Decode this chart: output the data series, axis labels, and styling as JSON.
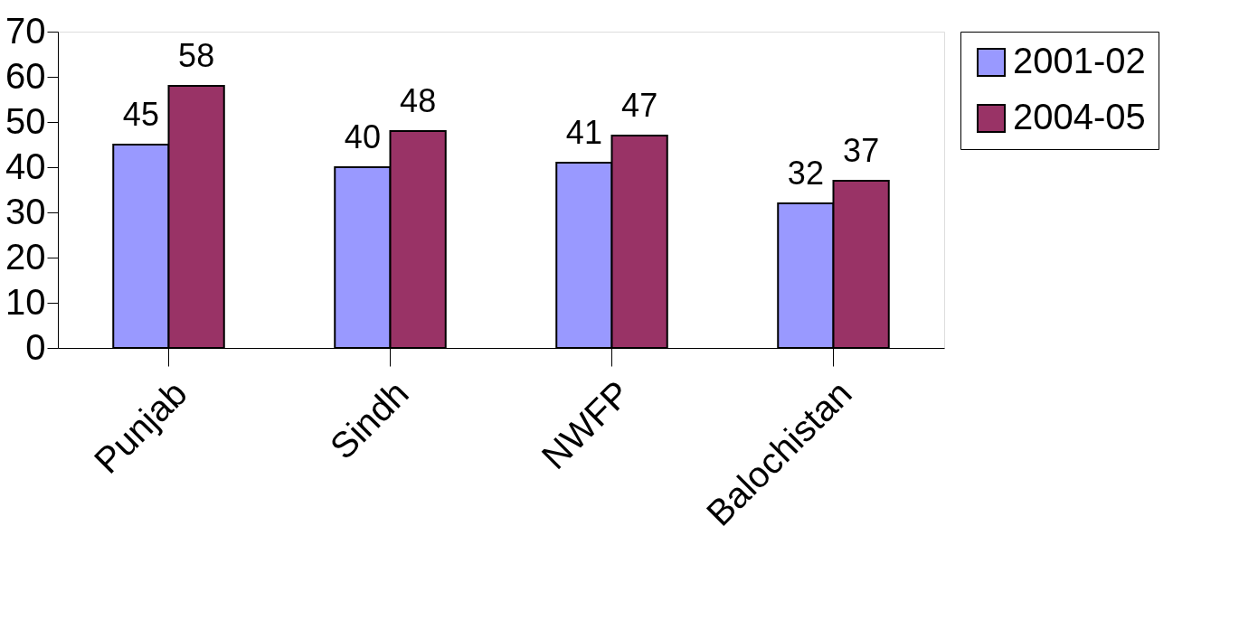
{
  "chart_data": {
    "type": "bar",
    "categories": [
      "Punjab",
      "Sindh",
      "NWFP",
      "Balochistan"
    ],
    "series": [
      {
        "name": "2001-02",
        "color": "#9999ff",
        "values": [
          45,
          40,
          41,
          32
        ]
      },
      {
        "name": "2004-05",
        "color": "#993366",
        "values": [
          58,
          48,
          47,
          37
        ]
      }
    ],
    "ylim": [
      0,
      70
    ],
    "yticks": [
      0,
      10,
      20,
      30,
      40,
      50,
      60,
      70
    ],
    "data_labels": true,
    "legend": "right",
    "grid": false
  }
}
